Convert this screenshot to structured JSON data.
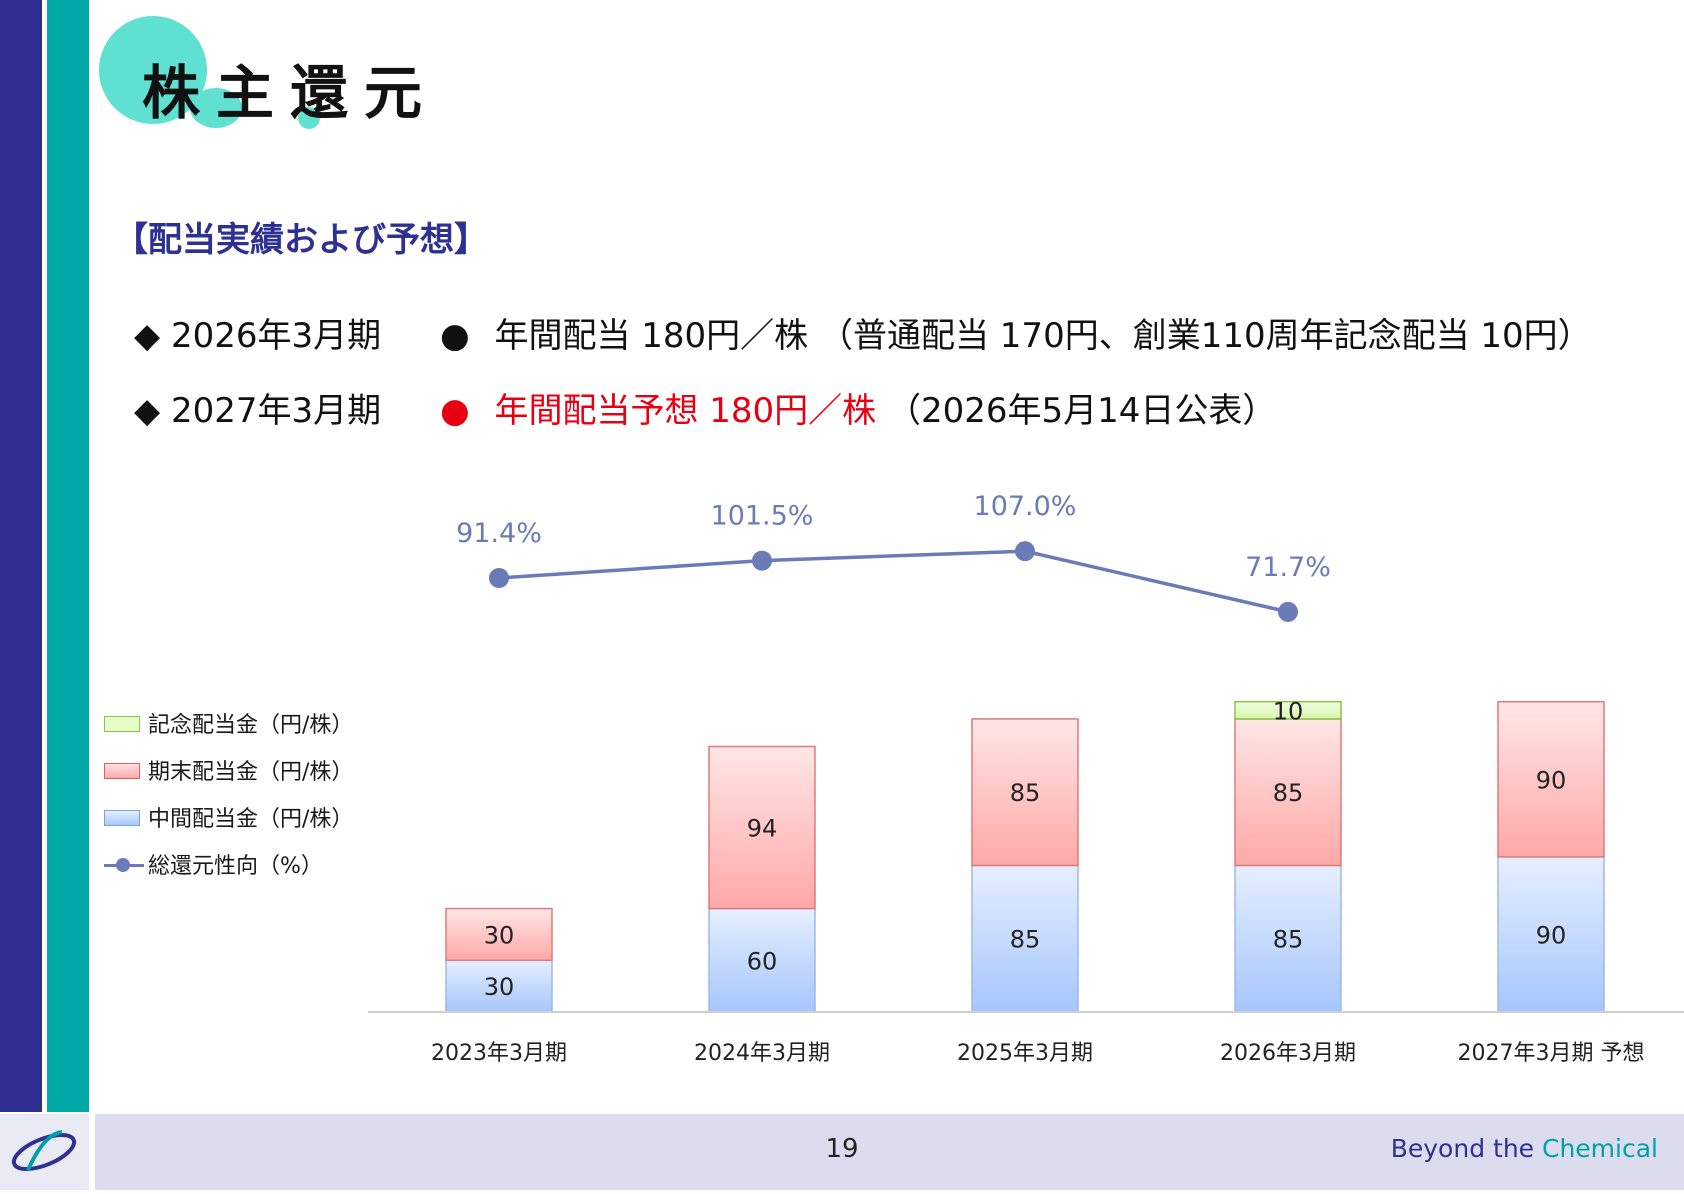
{
  "header": {
    "title": "株主還元"
  },
  "section": {
    "subtitle": "【配当実績および予想】"
  },
  "bullets": [
    {
      "marker": "◆",
      "period": "2026年3月期",
      "dot": "●",
      "text": "年間配当 180円／株 （普通配当 170円、創業110周年記念配当 10円）",
      "highlight": "",
      "suffix": ""
    },
    {
      "marker": "◆",
      "period": "2027年3月期",
      "dot": "●",
      "text": "",
      "highlight": "年間配当予想 180円／株",
      "suffix": " （2026年5月14日公表）"
    }
  ],
  "colors": {
    "navy": "#2e2f8f",
    "teal": "#00a8a8",
    "accent_red": "#e60012",
    "line": "#6b7bb8",
    "subtitle": "#2e3192"
  },
  "chart_data": {
    "type": "bar",
    "stacked": true,
    "categories": [
      "2023年3月期",
      "2024年3月期",
      "2025年3月期",
      "2026年3月期",
      "2027年3月期 予想"
    ],
    "series": [
      {
        "name": "中間配当金（円/株）",
        "values": [
          30,
          60,
          85,
          85,
          90
        ],
        "color": "#a8c8ff"
      },
      {
        "name": "期末配当金（円/株）",
        "values": [
          30,
          94,
          85,
          85,
          90
        ],
        "color": "#ffaaaa"
      },
      {
        "name": "記念配当金（円/株）",
        "values": [
          0,
          0,
          0,
          10,
          0
        ],
        "color": "#e6ffc8"
      }
    ],
    "line_series": {
      "name": "総還元性向（%）",
      "values": [
        91.4,
        101.5,
        107.0,
        71.7
      ],
      "labels": [
        "91.4%",
        "101.5%",
        "107.0%",
        "71.7%"
      ]
    },
    "ylim": [
      0,
      180
    ],
    "legend_position": "left"
  },
  "footer": {
    "page_number": "19",
    "brand_main": "Beyond the ",
    "brand_accent": "Chemical"
  }
}
